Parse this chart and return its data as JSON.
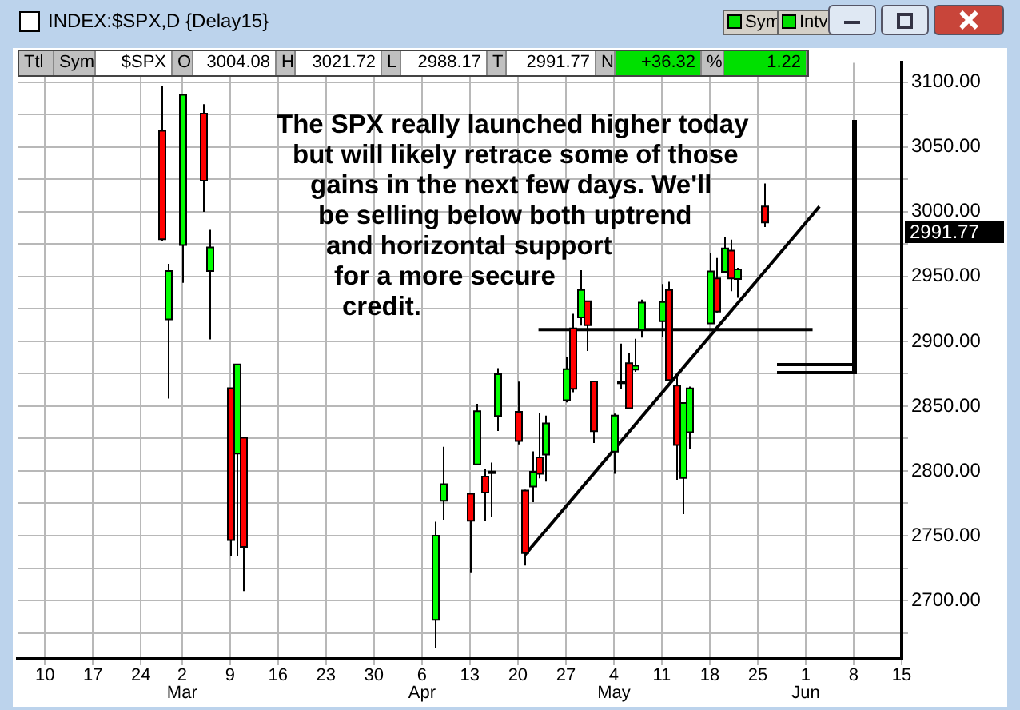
{
  "chart_data": {
    "type": "candlestick",
    "title": "INDEX:$SPX,D {Delay15}",
    "annotations": [
      "The SPX really launched higher today\nbut will likely retrace some of those\ngains in the next few days. We'll\nbe selling below both uptrend\nand horizontal support\nfor a more secure\ncredit.",
      "Sym",
      "Intv",
      "Ttl",
      "Sym",
      "$SPX",
      "O",
      "3004.08",
      "H",
      "3021.72",
      "L",
      "2988.17",
      "T",
      "2991.77",
      "N",
      "+36.32",
      "%",
      "1.22",
      "2991.77"
    ],
    "x": [
      "--02-27",
      "--02-28",
      "--03-02",
      "--03-05",
      "--03-06",
      "--03-09",
      "--03-10",
      "--03-11",
      "--04-08",
      "--04-09",
      "--04-13",
      "--04-14",
      "--04-15",
      "--04-16",
      "--04-17",
      "--04-20",
      "--04-21",
      "--04-22",
      "--04-23",
      "--04-24",
      "--04-27",
      "--04-28",
      "--04-29",
      "--04-30",
      "--05-01",
      "--05-04",
      "--05-05",
      "--05-06",
      "--05-07",
      "--05-08",
      "--05-11",
      "--05-12",
      "--05-13",
      "--05-14",
      "--05-15",
      "--05-18",
      "--05-19",
      "--05-20",
      "--05-21",
      "--05-22",
      "--05-26"
    ],
    "ohlc": [
      [
        3062.54,
        3097.07,
        2977.39,
        2978.76
      ],
      [
        2916.9,
        2959.72,
        2855.84,
        2954.22
      ],
      [
        2974.28,
        3090.96,
        2945.19,
        3090.23
      ],
      [
        3075.7,
        3083.04,
        2999.83,
        3023.94
      ],
      [
        2954.2,
        2985.93,
        2901.54,
        2972.37
      ],
      [
        2863.89,
        2863.89,
        2734.43,
        2746.56
      ],
      [
        2813.48,
        2882.59,
        2734.0,
        2882.23
      ],
      [
        2825.6,
        2825.6,
        2707.22,
        2741.38
      ],
      [
        2685.0,
        2760.75,
        2663.3,
        2749.98
      ],
      [
        2776.99,
        2818.57,
        2762.36,
        2789.82
      ],
      [
        2782.46,
        2782.46,
        2721.17,
        2761.63
      ],
      [
        2805.1,
        2851.85,
        2805.1,
        2846.06
      ],
      [
        2795.64,
        2801.88,
        2761.54,
        2783.36
      ],
      [
        2799.34,
        2806.51,
        2764.32,
        2799.55
      ],
      [
        2842.43,
        2879.22,
        2830.88,
        2874.56
      ],
      [
        2845.62,
        2868.98,
        2820.43,
        2823.16
      ],
      [
        2784.81,
        2785.54,
        2727.1,
        2736.56
      ],
      [
        2787.89,
        2815.1,
        2775.95,
        2799.31
      ],
      [
        2810.42,
        2844.9,
        2794.26,
        2797.8
      ],
      [
        2812.64,
        2842.71,
        2791.76,
        2836.74
      ],
      [
        2854.65,
        2887.72,
        2852.89,
        2878.48
      ],
      [
        2909.96,
        2921.15,
        2860.71,
        2863.39
      ],
      [
        2918.46,
        2954.86,
        2912.16,
        2939.51
      ],
      [
        2930.91,
        2930.91,
        2892.47,
        2912.43
      ],
      [
        2869.09,
        2869.09,
        2821.61,
        2830.71
      ],
      [
        2815.01,
        2844.24,
        2797.85,
        2842.74
      ],
      [
        2868.88,
        2898.23,
        2863.55,
        2868.44
      ],
      [
        2883.14,
        2891.11,
        2847.65,
        2848.42
      ],
      [
        2878.26,
        2901.92,
        2876.48,
        2881.19
      ],
      [
        2908.83,
        2932.16,
        2902.88,
        2929.8
      ],
      [
        2915.46,
        2944.25,
        2903.44,
        2930.32
      ],
      [
        2939.5,
        2945.82,
        2869.59,
        2870.12
      ],
      [
        2865.86,
        2874.14,
        2793.15,
        2820.0
      ],
      [
        2794.54,
        2852.8,
        2766.64,
        2852.5
      ],
      [
        2829.95,
        2865.01,
        2816.78,
        2863.7
      ],
      [
        2913.86,
        2968.09,
        2913.86,
        2953.91
      ],
      [
        2948.59,
        2964.21,
        2922.35,
        2922.94
      ],
      [
        2953.63,
        2980.29,
        2953.63,
        2971.61
      ],
      [
        2969.95,
        2978.5,
        2938.57,
        2948.51
      ],
      [
        2948.05,
        2956.76,
        2933.59,
        2955.45
      ],
      [
        3004.08,
        3021.72,
        2988.17,
        2991.77
      ]
    ],
    "colors": [
      "#ff0000",
      "#00ff00",
      "#00ff00",
      "#ff0000",
      "#00ff00",
      "#ff0000",
      "#00ff00",
      "#ff0000",
      "#00ff00",
      "#00ff00",
      "#ff0000",
      "#00ff00",
      "#ff0000",
      "#00ff00",
      "#00ff00",
      "#ff0000",
      "#ff0000",
      "#00ff00",
      "#ff0000",
      "#00ff00",
      "#00ff00",
      "#ff0000",
      "#00ff00",
      "#ff0000",
      "#ff0000",
      "#00ff00",
      "#ff0000",
      "#ff0000",
      "#00ff00",
      "#00ff00",
      "#00ff00",
      "#ff0000",
      "#ff0000",
      "#00ff00",
      "#00ff00",
      "#00ff00",
      "#ff0000",
      "#00ff00",
      "#ff0000",
      "#00ff00",
      "#ff0000"
    ],
    "series": [
      {
        "type": "line",
        "color": "#000000",
        "x": [
          "--04-21",
          "--06-03"
        ],
        "values": [
          2735,
          3004
        ]
      },
      {
        "type": "line",
        "color": "#000000",
        "x": [
          "--04-23",
          "--06-02"
        ],
        "values": [
          2909,
          2909
        ]
      }
    ],
    "xlim": [
      "--02-06",
      "--06-15"
    ],
    "xticks": [
      {
        "value": "--02-10",
        "label": "10"
      },
      {
        "value": "--02-17",
        "label": "17"
      },
      {
        "value": "--02-24",
        "label": "24"
      },
      {
        "value": "--03-02",
        "label": "2\nMar"
      },
      {
        "value": "--03-09",
        "label": "9"
      },
      {
        "value": "--03-16",
        "label": "16"
      },
      {
        "value": "--03-23",
        "label": "23"
      },
      {
        "value": "--03-30",
        "label": "30"
      },
      {
        "value": "--04-06",
        "label": "6\nApr"
      },
      {
        "value": "--04-13",
        "label": "13"
      },
      {
        "value": "--04-20",
        "label": "20"
      },
      {
        "value": "--04-27",
        "label": "27"
      },
      {
        "value": "--05-04",
        "label": "4\nMay"
      },
      {
        "value": "--05-11",
        "label": "11"
      },
      {
        "value": "--05-18",
        "label": "18"
      },
      {
        "value": "--05-25",
        "label": "25"
      },
      {
        "value": "--06-01",
        "label": "1\nJun"
      },
      {
        "value": "--06-08",
        "label": "8"
      },
      {
        "value": "--06-15",
        "label": "15"
      }
    ],
    "ylim": [
      2655,
      3115
    ],
    "yticks": [
      {
        "value": 2675,
        "label": null
      },
      {
        "value": 2700,
        "label": "2700.00"
      },
      {
        "value": 2725,
        "label": null
      },
      {
        "value": 2750,
        "label": "2750.00"
      },
      {
        "value": 2775,
        "label": null
      },
      {
        "value": 2800,
        "label": "2800.00"
      },
      {
        "value": 2825,
        "label": null
      },
      {
        "value": 2850,
        "label": "2850.00"
      },
      {
        "value": 2875,
        "label": null
      },
      {
        "value": 2900,
        "label": "2900.00"
      },
      {
        "value": 2925,
        "label": null
      },
      {
        "value": 2950,
        "label": "2950.00"
      },
      {
        "value": 2975,
        "label": null
      },
      {
        "value": 3000,
        "label": "3000.00"
      },
      {
        "value": 3025,
        "label": null
      },
      {
        "value": 3050,
        "label": "3050.00"
      },
      {
        "value": 3075,
        "label": null
      },
      {
        "value": 3100,
        "label": "3100.00"
      }
    ],
    "grid": true,
    "legend": false
  }
}
